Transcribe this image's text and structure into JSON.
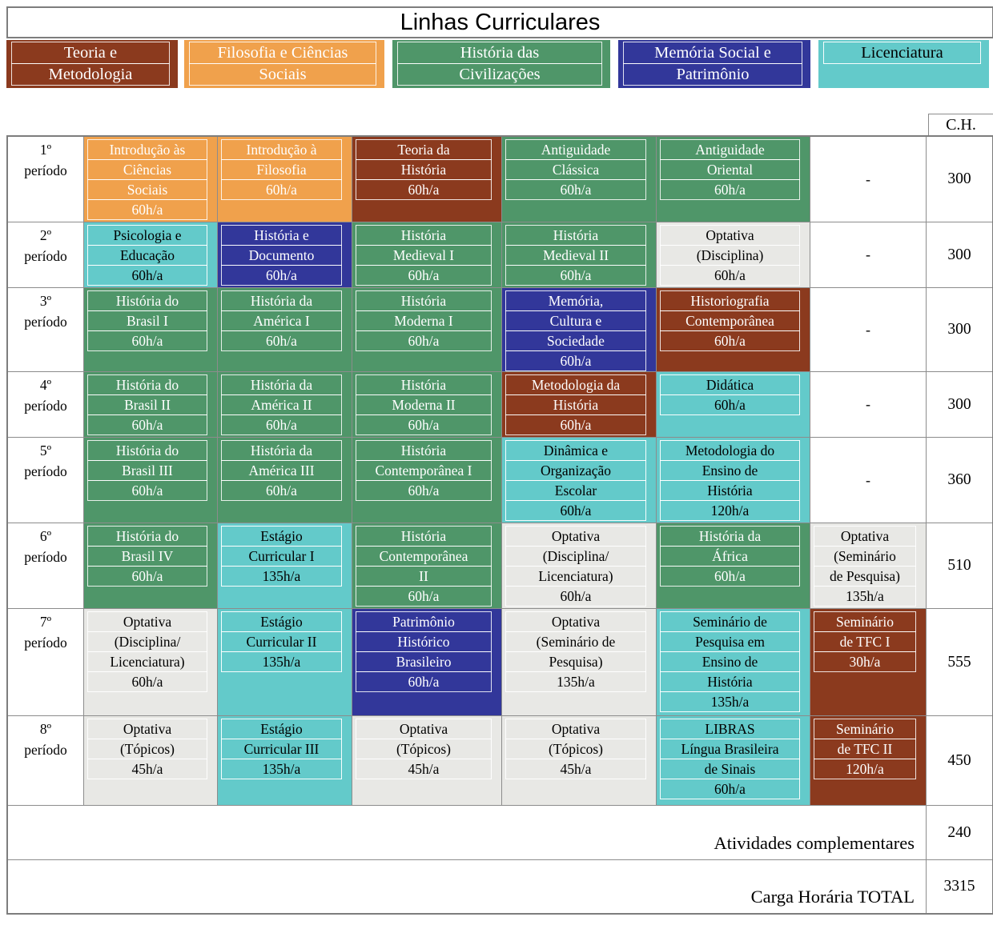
{
  "title": "Linhas Curriculares",
  "ch_header": "C.H.",
  "colors": {
    "red": "#8B3A1E",
    "orange": "#F0A14C",
    "green": "#4F9669",
    "blue": "#32379A",
    "teal": "#63CACA",
    "gray": "#E8E8E5"
  },
  "legend": {
    "items": [
      {
        "id": "teoria-e-metodologia",
        "color": "red",
        "lines": [
          "Teoria e",
          "Metodologia"
        ]
      },
      {
        "id": "filosofia-e-ciencias-sociais",
        "color": "orange",
        "lines": [
          "Filosofia e Ciências",
          "Sociais"
        ]
      },
      {
        "id": "historia-das-civilizacoes",
        "color": "green",
        "lines": [
          "História das",
          "Civilizações"
        ]
      },
      {
        "id": "memoria-social-e-patrimonio",
        "color": "blue",
        "lines": [
          "Memória Social e",
          "Patrimônio"
        ]
      },
      {
        "id": "licenciatura",
        "color": "teal",
        "lines": [
          "Licenciatura"
        ]
      }
    ]
  },
  "table": {
    "rows": [
      {
        "period": [
          "1º",
          "período"
        ],
        "ch": "300",
        "cells": [
          {
            "color": "orange",
            "lines": [
              "Introdução às",
              "Ciências",
              "Sociais",
              "60h/a"
            ]
          },
          {
            "color": "orange",
            "lines": [
              "Introdução à",
              "Filosofia",
              "60h/a"
            ]
          },
          {
            "color": "red",
            "lines": [
              "Teoria da",
              "História",
              "60h/a"
            ]
          },
          {
            "color": "green",
            "lines": [
              "Antiguidade",
              "Clássica",
              "60h/a"
            ]
          },
          {
            "color": "green",
            "lines": [
              "Antiguidade",
              "Oriental",
              "60h/a"
            ]
          },
          {
            "color": "none",
            "lines": [
              "-"
            ]
          }
        ]
      },
      {
        "period": [
          "2º",
          "período"
        ],
        "ch": "300",
        "cells": [
          {
            "color": "teal",
            "lines": [
              "Psicologia e",
              "Educação",
              "60h/a"
            ]
          },
          {
            "color": "blue",
            "lines": [
              "História e",
              "Documento",
              "60h/a"
            ]
          },
          {
            "color": "green",
            "lines": [
              "História",
              "Medieval I",
              "60h/a"
            ]
          },
          {
            "color": "green",
            "lines": [
              "História",
              "Medieval II",
              "60h/a"
            ]
          },
          {
            "color": "gray",
            "lines": [
              "Optativa",
              "(Disciplina)",
              "60h/a"
            ]
          },
          {
            "color": "none",
            "lines": [
              "-"
            ]
          }
        ]
      },
      {
        "period": [
          "3º",
          "período"
        ],
        "ch": "300",
        "cells": [
          {
            "color": "green",
            "lines": [
              "História do",
              "Brasil I",
              "60h/a"
            ]
          },
          {
            "color": "green",
            "lines": [
              "História da",
              "América I",
              "60h/a"
            ]
          },
          {
            "color": "green",
            "lines": [
              "História",
              "Moderna I",
              "60h/a"
            ]
          },
          {
            "color": "blue",
            "lines": [
              "Memória,",
              "Cultura e",
              "Sociedade",
              "60h/a"
            ]
          },
          {
            "color": "red",
            "lines": [
              "Historiografia",
              "Contemporânea",
              "60h/a"
            ]
          },
          {
            "color": "none",
            "lines": [
              "-"
            ]
          }
        ]
      },
      {
        "period": [
          "4º",
          "período"
        ],
        "ch": "300",
        "cells": [
          {
            "color": "green",
            "lines": [
              "História do",
              "Brasil II",
              "60h/a"
            ]
          },
          {
            "color": "green",
            "lines": [
              "História da",
              "América II",
              "60h/a"
            ]
          },
          {
            "color": "green",
            "lines": [
              "História",
              "Moderna II",
              "60h/a"
            ]
          },
          {
            "color": "red",
            "lines": [
              "Metodologia da",
              "História",
              "60h/a"
            ]
          },
          {
            "color": "teal",
            "lines": [
              "Didática",
              "60h/a"
            ]
          },
          {
            "color": "none",
            "lines": [
              "-"
            ]
          }
        ]
      },
      {
        "period": [
          "5º",
          "período"
        ],
        "ch": "360",
        "cells": [
          {
            "color": "green",
            "lines": [
              "História do",
              "Brasil III",
              "60h/a"
            ]
          },
          {
            "color": "green",
            "lines": [
              "História da",
              "América III",
              "60h/a"
            ]
          },
          {
            "color": "green",
            "lines": [
              "História",
              "Contemporânea I",
              "60h/a"
            ]
          },
          {
            "color": "teal",
            "lines": [
              "Dinâmica e",
              "Organização",
              "Escolar",
              "60h/a"
            ]
          },
          {
            "color": "teal",
            "lines": [
              "Metodologia do",
              "Ensino de",
              "História",
              "120h/a"
            ]
          },
          {
            "color": "none",
            "lines": [
              "-"
            ]
          }
        ]
      },
      {
        "period": [
          "6º",
          "período"
        ],
        "ch": "510",
        "cells": [
          {
            "color": "green",
            "lines": [
              "História do",
              "Brasil IV",
              "60h/a"
            ]
          },
          {
            "color": "teal",
            "lines": [
              "Estágio",
              "Curricular I",
              "135h/a"
            ]
          },
          {
            "color": "green",
            "lines": [
              "História",
              "Contemporânea",
              "II",
              "60h/a"
            ]
          },
          {
            "color": "gray",
            "lines": [
              "Optativa",
              "(Disciplina/",
              "Licenciatura)",
              "60h/a"
            ]
          },
          {
            "color": "green",
            "lines": [
              "História da",
              "África",
              "60h/a"
            ]
          },
          {
            "color": "gray",
            "lines": [
              "Optativa",
              "(Seminário",
              "de Pesquisa)",
              "135h/a"
            ]
          }
        ]
      },
      {
        "period": [
          "7º",
          "período"
        ],
        "ch": "555",
        "cells": [
          {
            "color": "gray",
            "lines": [
              "Optativa",
              "(Disciplina/",
              "Licenciatura)",
              "60h/a"
            ]
          },
          {
            "color": "teal",
            "lines": [
              "Estágio",
              "Curricular II",
              "135h/a"
            ]
          },
          {
            "color": "blue",
            "lines": [
              "Patrimônio",
              "Histórico",
              "Brasileiro",
              "60h/a"
            ]
          },
          {
            "color": "gray",
            "lines": [
              "Optativa",
              "(Seminário de",
              "Pesquisa)",
              "135h/a"
            ]
          },
          {
            "color": "teal",
            "lines": [
              "Seminário de",
              "Pesquisa em",
              "Ensino de",
              "História",
              "135h/a"
            ]
          },
          {
            "color": "red",
            "lines": [
              "Seminário",
              "de TFC I",
              "30h/a"
            ]
          }
        ]
      },
      {
        "period": [
          "8º",
          "período"
        ],
        "ch": "450",
        "cells": [
          {
            "color": "gray",
            "lines": [
              "Optativa",
              "(Tópicos)",
              "45h/a"
            ]
          },
          {
            "color": "teal",
            "lines": [
              "Estágio",
              "Curricular III",
              "135h/a"
            ]
          },
          {
            "color": "gray",
            "lines": [
              "Optativa",
              "(Tópicos)",
              "45h/a"
            ]
          },
          {
            "color": "gray",
            "lines": [
              "Optativa",
              "(Tópicos)",
              "45h/a"
            ]
          },
          {
            "color": "teal",
            "lines": [
              "LIBRAS",
              "Língua Brasileira",
              "de Sinais",
              "60h/a"
            ]
          },
          {
            "color": "red",
            "lines": [
              "Seminário",
              "de TFC II",
              "120h/a"
            ]
          }
        ]
      }
    ],
    "footer": [
      {
        "id": "complementary-activities",
        "label": "Atividades complementares",
        "ch": "240"
      },
      {
        "id": "total-workload",
        "label": "Carga Horária TOTAL",
        "ch": "3315"
      }
    ]
  }
}
